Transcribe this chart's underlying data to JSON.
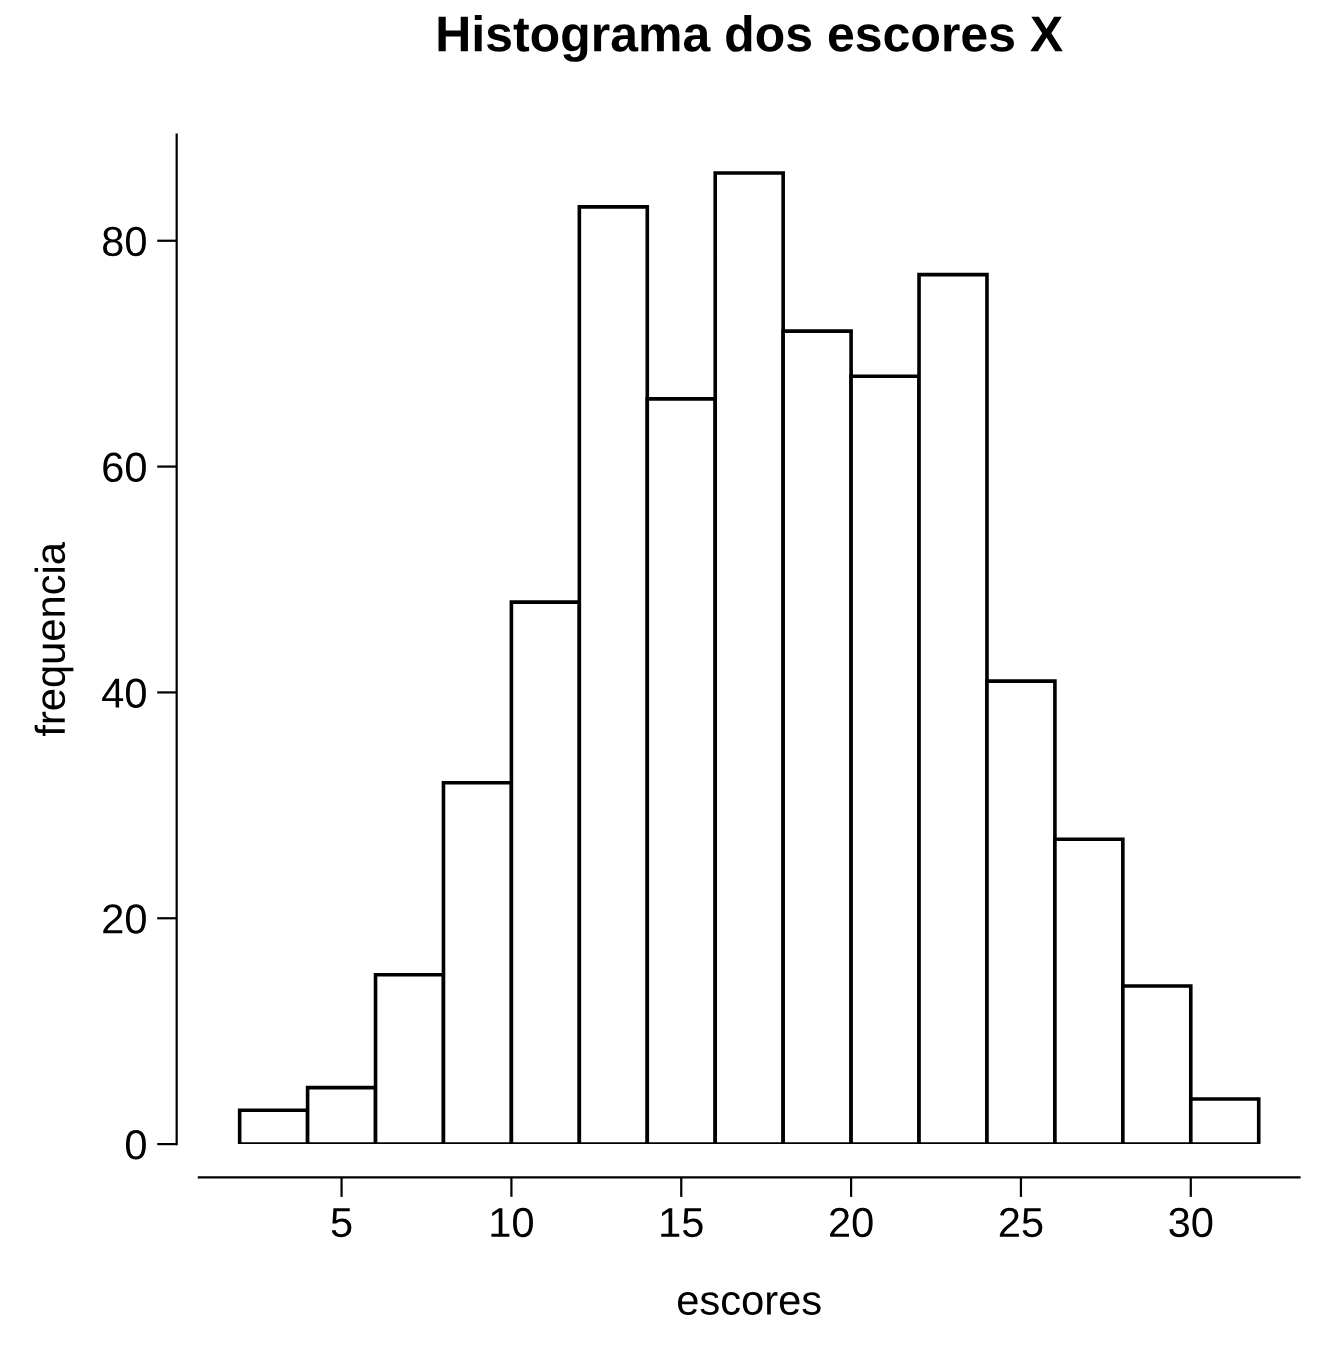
{
  "chart_data": {
    "type": "histogram",
    "title": "Histograma dos escores X",
    "xlabel": "escores",
    "ylabel": "frequencia",
    "bins": [
      2,
      4,
      6,
      8,
      10,
      12,
      14,
      16,
      18,
      20,
      22,
      24,
      26,
      28,
      30,
      32
    ],
    "values": [
      3,
      5,
      15,
      32,
      48,
      83,
      66,
      86,
      72,
      68,
      77,
      41,
      27,
      14,
      4
    ],
    "color": "#ffffff",
    "xlim": [
      0.8,
      33.2
    ],
    "ylim": [
      0,
      89.4
    ],
    "xticks": [
      5,
      10,
      15,
      20,
      25,
      30
    ],
    "yticks": [
      0,
      20,
      40,
      60,
      80
    ],
    "grid": false
  }
}
